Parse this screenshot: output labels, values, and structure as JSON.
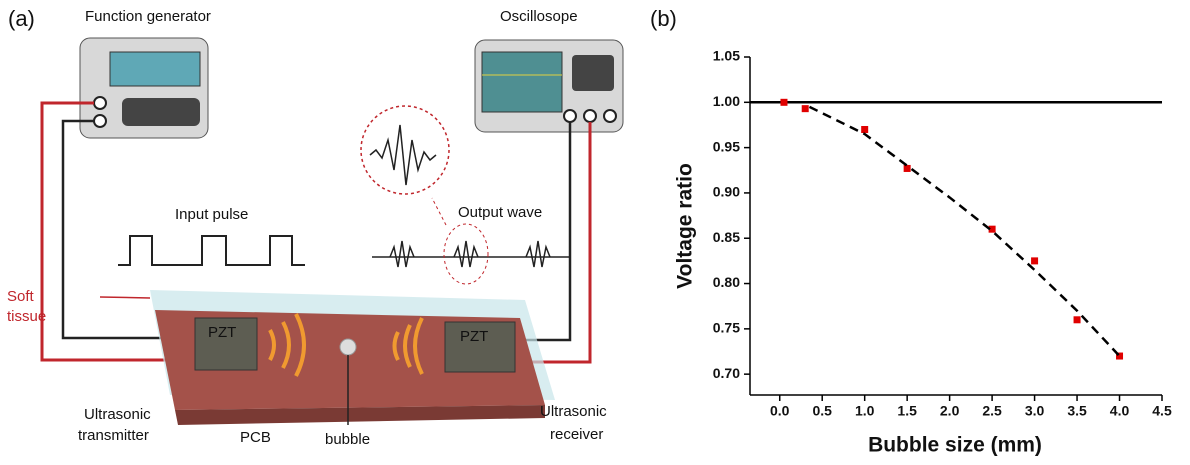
{
  "diagram": {
    "panel_label": "(a)",
    "function_generator": "Function generator",
    "oscilloscope": "Oscillosope",
    "input_pulse": "Input pulse",
    "output_wave": "Output wave",
    "soft_tissue": [
      "Soft",
      "tissue"
    ],
    "pzt_left": "PZT",
    "pzt_right": "PZT",
    "transmitter": [
      "Ultrasonic",
      "transmitter"
    ],
    "pcb": "PCB",
    "bubble": "bubble",
    "receiver": [
      "Ultrasonic",
      "receiver"
    ]
  },
  "chart_data": {
    "type": "scatter",
    "panel_label": "(b)",
    "x_label": "Bubble size (mm)",
    "y_label": "Voltage ratio",
    "xlim": [
      -0.35,
      4.5
    ],
    "ylim": [
      0.677,
      1.05
    ],
    "xticks": [
      {
        "value": 0,
        "label": "0.0"
      },
      {
        "value": 0.5,
        "label": "0.5"
      },
      {
        "value": 1,
        "label": "1.0"
      },
      {
        "value": 1.5,
        "label": "1.5"
      },
      {
        "value": 2,
        "label": "2.0"
      },
      {
        "value": 2.5,
        "label": "2.5"
      },
      {
        "value": 3,
        "label": "3.0"
      },
      {
        "value": 3.5,
        "label": "3.5"
      },
      {
        "value": 4,
        "label": "4.0"
      },
      {
        "value": 4.5,
        "label": "4.5"
      }
    ],
    "yticks": [
      {
        "value": 0.7,
        "label": "0.70"
      },
      {
        "value": 0.75,
        "label": "0.75"
      },
      {
        "value": 0.8,
        "label": "0.80"
      },
      {
        "value": 0.85,
        "label": "0.85"
      },
      {
        "value": 0.9,
        "label": "0.90"
      },
      {
        "value": 0.95,
        "label": "0.95"
      },
      {
        "value": 1,
        "label": "1.00"
      },
      {
        "value": 1.05,
        "label": "1.05"
      }
    ],
    "reference_line": 1,
    "series": [
      {
        "type": "scatter",
        "color": "#e00000",
        "x": [
          0.05,
          0.3,
          1.0,
          1.5,
          2.5,
          3.0,
          3.5,
          4.0
        ],
        "values": [
          1.0,
          0.993,
          0.97,
          0.927,
          0.86,
          0.825,
          0.76,
          0.72
        ]
      },
      {
        "type": "line",
        "dashed": true,
        "color": "#000000",
        "x": [
          0.35,
          1.0,
          1.5,
          2.0,
          2.5,
          3.0,
          3.5,
          4.0
        ],
        "values": [
          0.995,
          0.965,
          0.93,
          0.895,
          0.858,
          0.815,
          0.77,
          0.72
        ]
      }
    ]
  }
}
